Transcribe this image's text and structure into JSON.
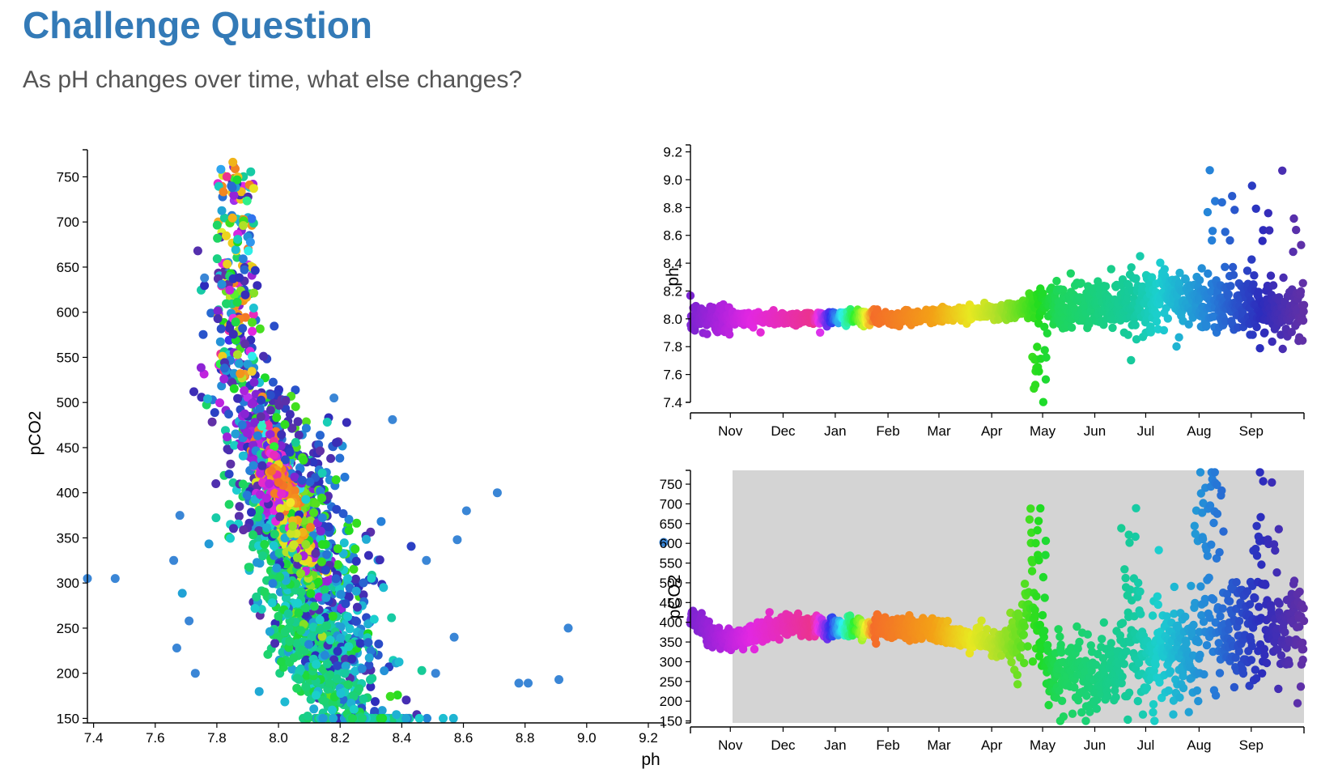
{
  "page": {
    "title": "Challenge Question",
    "subtitle": "As pH changes over time, what else changes?"
  },
  "chart_data": [
    {
      "id": "scatter",
      "type": "scatter",
      "title": "",
      "xlabel": "ph",
      "ylabel": "pCO2",
      "xlim": [
        7.38,
        9.25
      ],
      "ylim": [
        145,
        780
      ],
      "xticks": [
        "7.4",
        "7.6",
        "7.8",
        "8.0",
        "8.2",
        "8.4",
        "8.6",
        "8.8",
        "9.0",
        "9.2"
      ],
      "yticks": [
        "150",
        "200",
        "250",
        "300",
        "350",
        "400",
        "450",
        "500",
        "550",
        "600",
        "650",
        "700",
        "750"
      ],
      "color_encoding": "time (rainbow)",
      "points_note": "about 4000 observations; main cloud pH 7.8-8.4, pCO2 170-780",
      "outliers": [
        {
          "x": 7.38,
          "y": 305
        },
        {
          "x": 7.47,
          "y": 305
        },
        {
          "x": 8.71,
          "y": 400
        },
        {
          "x": 8.61,
          "y": 380
        },
        {
          "x": 8.94,
          "y": 250
        },
        {
          "x": 8.78,
          "y": 189
        },
        {
          "x": 8.81,
          "y": 189
        },
        {
          "x": 8.91,
          "y": 193
        },
        {
          "x": 9.25,
          "y": 345
        },
        {
          "x": 8.37,
          "y": 481
        },
        {
          "x": 8.18,
          "y": 505
        },
        {
          "x": 7.76,
          "y": 638
        },
        {
          "x": 7.68,
          "y": 375
        },
        {
          "x": 7.66,
          "y": 325
        },
        {
          "x": 7.67,
          "y": 228
        },
        {
          "x": 7.71,
          "y": 258
        },
        {
          "x": 7.73,
          "y": 200
        },
        {
          "x": 8.58,
          "y": 348
        },
        {
          "x": 8.48,
          "y": 325
        },
        {
          "x": 8.51,
          "y": 200
        },
        {
          "x": 8.57,
          "y": 240
        }
      ]
    },
    {
      "id": "ph-time",
      "type": "scatter",
      "title": "",
      "xlabel": "",
      "ylabel": "ph",
      "ylim": [
        7.4,
        9.25
      ],
      "xticks": [
        "Nov",
        "Dec",
        "Jan",
        "Feb",
        "Mar",
        "Apr",
        "May",
        "Jun",
        "Jul",
        "Aug",
        "Sep"
      ],
      "yticks": [
        "7.4",
        "7.6",
        "7.8",
        "8.0",
        "8.2",
        "8.4",
        "8.6",
        "8.8",
        "9.0",
        "9.2"
      ],
      "color_encoding": "time (rainbow)",
      "monthly_approx": [
        {
          "month": "Oct",
          "ph": 8.0
        },
        {
          "month": "Nov",
          "ph": 8.02
        },
        {
          "month": "Dec",
          "ph": 8.01
        },
        {
          "month": "Jan",
          "ph": 8.03
        },
        {
          "month": "Feb",
          "ph": 8.04
        },
        {
          "month": "Mar",
          "ph": 8.08
        },
        {
          "month": "Apr",
          "ph": 8.11
        },
        {
          "month": "May",
          "ph": 8.12
        },
        {
          "month": "Jun",
          "ph": 8.16
        },
        {
          "month": "Jul",
          "ph": 8.1
        },
        {
          "month": "Aug",
          "ph": 8.06
        },
        {
          "month": "Sep",
          "ph": 8.1
        }
      ]
    },
    {
      "id": "pco2-time",
      "type": "scatter",
      "title": "",
      "xlabel": "",
      "ylabel": "pCO2",
      "ylim": [
        145,
        785
      ],
      "xticks": [
        "Nov",
        "Dec",
        "Jan",
        "Feb",
        "Mar",
        "Apr",
        "May",
        "Jun",
        "Jul",
        "Aug",
        "Sep"
      ],
      "yticks": [
        "150",
        "200",
        "250",
        "300",
        "350",
        "400",
        "450",
        "500",
        "550",
        "600",
        "650",
        "700",
        "750"
      ],
      "plot_background": "#d4d4d4",
      "color_encoding": "time (rainbow)",
      "monthly_approx": [
        {
          "month": "Oct",
          "pCO2": 400
        },
        {
          "month": "Nov",
          "pCO2": 360
        },
        {
          "month": "Dec",
          "pCO2": 405
        },
        {
          "month": "Jan",
          "pCO2": 380
        },
        {
          "month": "Feb",
          "pCO2": 385
        },
        {
          "month": "Mar",
          "pCO2": 375
        },
        {
          "month": "Apr",
          "pCO2": 340
        },
        {
          "month": "May",
          "pCO2": 350
        },
        {
          "month": "Jun",
          "pCO2": 280
        },
        {
          "month": "Jul",
          "pCO2": 330
        },
        {
          "month": "Aug",
          "pCO2": 400
        },
        {
          "month": "Sep",
          "pCO2": 380
        }
      ]
    }
  ]
}
